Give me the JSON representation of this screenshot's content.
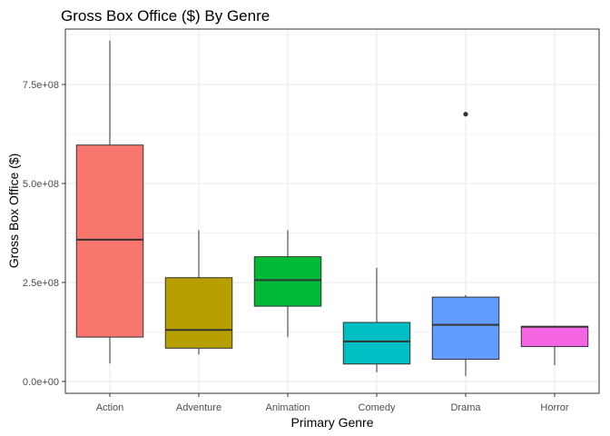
{
  "chart_data": {
    "type": "boxplot",
    "title": "Gross Box Office ($) By Genre",
    "xlabel": "Primary Genre",
    "ylabel": "Gross Box Office ($)",
    "ylim": [
      -30000000,
      890000000
    ],
    "yticks": [
      {
        "value": 0,
        "label": "0.0e+00"
      },
      {
        "value": 250000000,
        "label": "2.5e+08"
      },
      {
        "value": 500000000,
        "label": "5.0e+08"
      },
      {
        "value": 750000000,
        "label": "7.5e+08"
      }
    ],
    "grid": true,
    "legend": "none",
    "categories": [
      "Action",
      "Adventure",
      "Animation",
      "Comedy",
      "Drama",
      "Horror"
    ],
    "boxes": [
      {
        "category": "Action",
        "color": "#F8766D",
        "min": 45000000,
        "q1": 112000000,
        "median": 358000000,
        "q3": 597000000,
        "max": 861000000,
        "outliers": []
      },
      {
        "category": "Adventure",
        "color": "#B79F00",
        "min": 68000000,
        "q1": 84000000,
        "median": 130000000,
        "q3": 262000000,
        "max": 382000000,
        "outliers": []
      },
      {
        "category": "Animation",
        "color": "#00BA38",
        "min": 112000000,
        "q1": 190000000,
        "median": 256000000,
        "q3": 315000000,
        "max": 382000000,
        "outliers": []
      },
      {
        "category": "Comedy",
        "color": "#00BFC4",
        "min": 23000000,
        "q1": 44000000,
        "median": 101000000,
        "q3": 149000000,
        "max": 287000000,
        "outliers": []
      },
      {
        "category": "Drama",
        "color": "#619CFF",
        "min": 14000000,
        "q1": 56000000,
        "median": 143000000,
        "q3": 213000000,
        "max": 218000000,
        "outliers": [
          675000000
        ]
      },
      {
        "category": "Horror",
        "color": "#F564E3",
        "min": 41000000,
        "q1": 88000000,
        "median": 138000000,
        "q3": 139000000,
        "max": 139000000,
        "outliers": []
      }
    ]
  }
}
